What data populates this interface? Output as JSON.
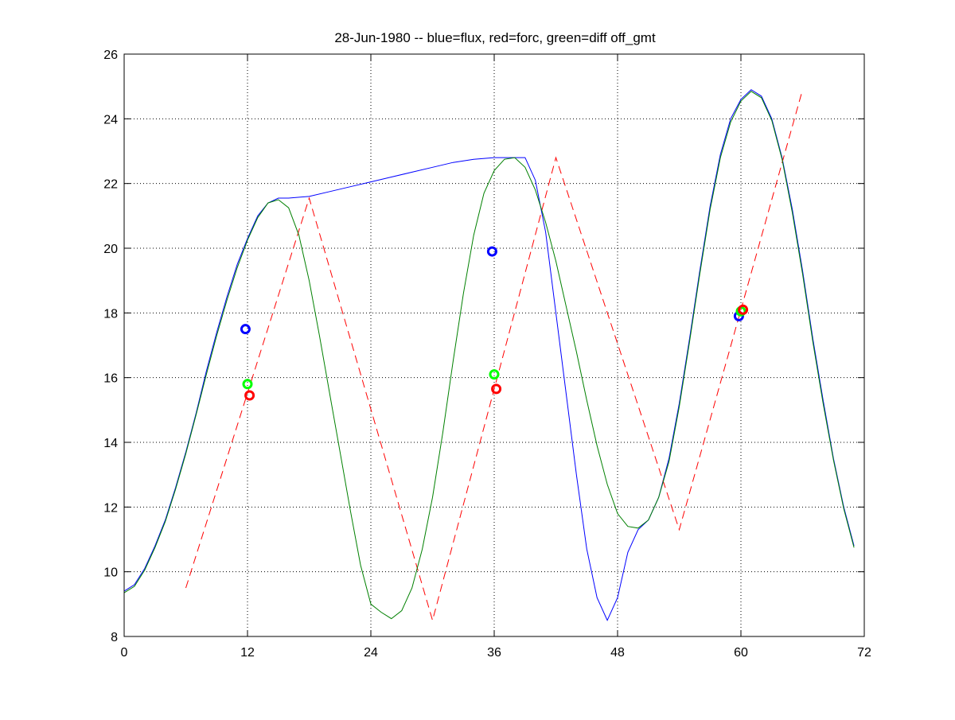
{
  "chart_data": {
    "type": "line",
    "title": "28-Jun-1980 -- blue=flux, red=forc, green=diff off_gmt",
    "xlabel": "",
    "ylabel": "",
    "xlim": [
      0,
      72
    ],
    "ylim": [
      8,
      26
    ],
    "xticks": [
      0,
      12,
      24,
      36,
      48,
      60,
      72
    ],
    "yticks": [
      8,
      10,
      12,
      14,
      16,
      18,
      20,
      22,
      24,
      26
    ],
    "grid": true,
    "series": [
      {
        "color": "#0000ff",
        "style": "solid",
        "x": [
          0,
          1,
          2,
          3,
          4,
          5,
          6,
          7,
          8,
          9,
          10,
          11,
          12,
          13,
          14,
          15,
          16,
          18,
          20,
          22,
          24,
          26,
          28,
          30,
          32,
          34,
          36,
          38,
          39,
          40,
          41,
          42,
          43,
          44,
          45,
          46,
          47,
          48,
          49,
          50,
          51,
          52,
          53,
          54,
          55,
          56,
          57,
          58,
          59,
          60,
          61,
          62,
          63,
          64,
          65,
          66,
          67,
          68,
          69,
          70,
          71
        ],
        "y": [
          9.4,
          9.6,
          10.1,
          10.8,
          11.6,
          12.6,
          13.7,
          14.9,
          16.2,
          17.4,
          18.5,
          19.5,
          20.3,
          21.0,
          21.4,
          21.55,
          21.55,
          21.6,
          21.75,
          21.9,
          22.05,
          22.2,
          22.35,
          22.5,
          22.65,
          22.75,
          22.8,
          22.8,
          22.8,
          22.1,
          20.5,
          18.0,
          15.5,
          13.0,
          10.7,
          9.2,
          8.5,
          9.2,
          10.6,
          11.3,
          11.6,
          12.3,
          13.5,
          15.2,
          17.2,
          19.3,
          21.3,
          22.9,
          24.0,
          24.6,
          24.9,
          24.7,
          24.0,
          22.8,
          21.2,
          19.3,
          17.2,
          15.3,
          13.5,
          12.0,
          10.8
        ]
      },
      {
        "color": "#ff0000",
        "style": "dashed",
        "x": [
          6,
          18,
          30,
          42,
          54,
          66
        ],
        "y": [
          9.5,
          21.55,
          8.5,
          22.8,
          11.3,
          24.9
        ]
      },
      {
        "color": "#008000",
        "style": "solid",
        "x": [
          0,
          1,
          2,
          3,
          4,
          5,
          6,
          7,
          8,
          9,
          10,
          11,
          12,
          13,
          14,
          15,
          16,
          17,
          18,
          19,
          20,
          21,
          22,
          23,
          24,
          25,
          26,
          27,
          28,
          29,
          30,
          31,
          32,
          33,
          34,
          35,
          36,
          37,
          38,
          39,
          40,
          41,
          42,
          43,
          44,
          45,
          46,
          47,
          48,
          49,
          50,
          51,
          52,
          53,
          54,
          55,
          56,
          57,
          58,
          59,
          60,
          61,
          62,
          63,
          64,
          65,
          66,
          67,
          68,
          69,
          70,
          71
        ],
        "y": [
          9.35,
          9.55,
          10.05,
          10.75,
          11.55,
          12.55,
          13.65,
          14.85,
          16.1,
          17.3,
          18.4,
          19.4,
          20.25,
          20.95,
          21.4,
          21.5,
          21.25,
          20.4,
          19.0,
          17.3,
          15.5,
          13.7,
          11.9,
          10.2,
          9.0,
          8.75,
          8.55,
          8.8,
          9.5,
          10.7,
          12.3,
          14.3,
          16.5,
          18.6,
          20.4,
          21.7,
          22.4,
          22.75,
          22.8,
          22.5,
          21.8,
          20.8,
          19.6,
          18.2,
          16.8,
          15.3,
          13.9,
          12.7,
          11.8,
          11.4,
          11.35,
          11.6,
          12.3,
          13.4,
          15.1,
          17.1,
          19.2,
          21.2,
          22.8,
          23.9,
          24.55,
          24.85,
          24.65,
          23.95,
          22.75,
          21.1,
          19.2,
          17.1,
          15.2,
          13.45,
          11.95,
          10.75
        ]
      }
    ],
    "markers": [
      {
        "color": "#0000ff",
        "x": 11.8,
        "y": 17.5
      },
      {
        "color": "#00ff00",
        "x": 12.0,
        "y": 15.8
      },
      {
        "color": "#ff0000",
        "x": 12.2,
        "y": 15.45
      },
      {
        "color": "#0000ff",
        "x": 35.8,
        "y": 19.9
      },
      {
        "color": "#00ff00",
        "x": 36.0,
        "y": 16.1
      },
      {
        "color": "#ff0000",
        "x": 36.2,
        "y": 15.65
      },
      {
        "color": "#0000ff",
        "x": 59.8,
        "y": 17.9
      },
      {
        "color": "#00ff00",
        "x": 60.0,
        "y": 18.05
      },
      {
        "color": "#ff0000",
        "x": 60.2,
        "y": 18.1
      }
    ]
  }
}
